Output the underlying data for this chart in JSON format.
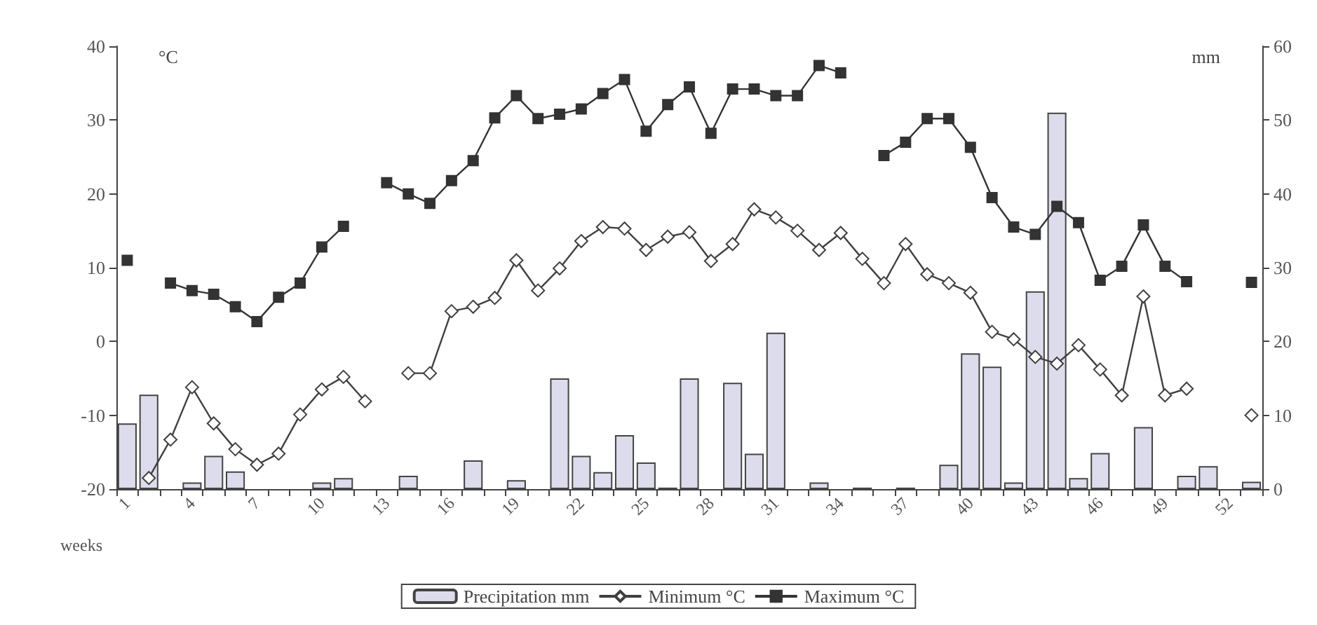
{
  "chart_data": {
    "type": "bar",
    "xlabel": "weeks",
    "ylabel": "°C",
    "y2label": "mm",
    "categories": [
      "1",
      null,
      null,
      "4",
      null,
      null,
      "7",
      null,
      null,
      "10",
      null,
      null,
      "13",
      null,
      null,
      "16",
      null,
      null,
      "19",
      null,
      null,
      "22",
      null,
      null,
      "25",
      null,
      null,
      "28",
      null,
      null,
      "31",
      null,
      null,
      "34",
      null,
      null,
      "37",
      null,
      null,
      "40",
      null,
      null,
      "43",
      null,
      null,
      "46",
      null,
      null,
      "49",
      null,
      null,
      "52",
      null
    ],
    "series": [
      {
        "name": "Precipitation mm",
        "axis": "y2",
        "color": "#dcdcec",
        "values": [
          8.9,
          12.8,
          null,
          0.9,
          4.5,
          2.4,
          null,
          null,
          null,
          0.9,
          1.5,
          null,
          null,
          1.8,
          null,
          null,
          3.9,
          null,
          1.2,
          null,
          15,
          4.5,
          2.3,
          7.3,
          3.6,
          0.2,
          15,
          null,
          14.4,
          4.8,
          21.2,
          null,
          0.9,
          null,
          0.2,
          null,
          0.2,
          null,
          3.3,
          18.4,
          16.6,
          0.9,
          26.8,
          51.0,
          1.5,
          4.9,
          null,
          8.4,
          null,
          1.8,
          3.1,
          null,
          1.0
        ]
      },
      {
        "name": "Minimum °C",
        "type": "line",
        "marker": "diamond",
        "color": "#404040",
        "values": [
          null,
          -18.5,
          -13.3,
          -6.2,
          -11.1,
          -14.6,
          -16.7,
          -15.2,
          -9.9,
          -6.5,
          -4.8,
          -8.1,
          null,
          -4.3,
          -4.3,
          4.1,
          4.7,
          5.9,
          11.0,
          6.9,
          9.9,
          13.6,
          15.5,
          15.3,
          12.4,
          14.2,
          14.8,
          10.9,
          13.2,
          17.9,
          16.8,
          15.0,
          12.4,
          14.7,
          11.2,
          7.9,
          13.2,
          9.1,
          7.9,
          6.6,
          1.3,
          0.3,
          -2.1,
          -3.0,
          -0.5,
          -3.8,
          -7.3,
          6.1,
          -7.3,
          -6.4,
          null,
          null,
          -10.0
        ]
      },
      {
        "name": "Maximum °C",
        "type": "line",
        "marker": "square",
        "color": "#333333",
        "values": [
          11,
          null,
          7.9,
          6.9,
          6.4,
          4.7,
          2.7,
          6,
          7.9,
          12.8,
          15.6,
          null,
          21.5,
          20,
          18.7,
          21.8,
          24.5,
          30.3,
          33.3,
          30.2,
          30.8,
          31.5,
          33.6,
          35.5,
          28.5,
          32.1,
          34.5,
          28.2,
          34.2,
          34.2,
          33.3,
          33.3,
          37.4,
          36.4,
          null,
          25.2,
          27,
          30.2,
          30.2,
          26.3,
          19.5,
          15.5,
          14.5,
          18.3,
          16.1,
          8.3,
          10.2,
          15.8,
          10.2,
          8.1,
          null,
          null,
          8.0
        ]
      }
    ],
    "ylim": [
      -20,
      40
    ],
    "yticks": [
      -20,
      -10,
      0,
      10,
      20,
      30,
      40
    ],
    "y2lim": [
      0,
      60
    ],
    "y2ticks": [
      0,
      10,
      20,
      30,
      40,
      50,
      60
    ],
    "grid": false,
    "legend": "bottom"
  }
}
